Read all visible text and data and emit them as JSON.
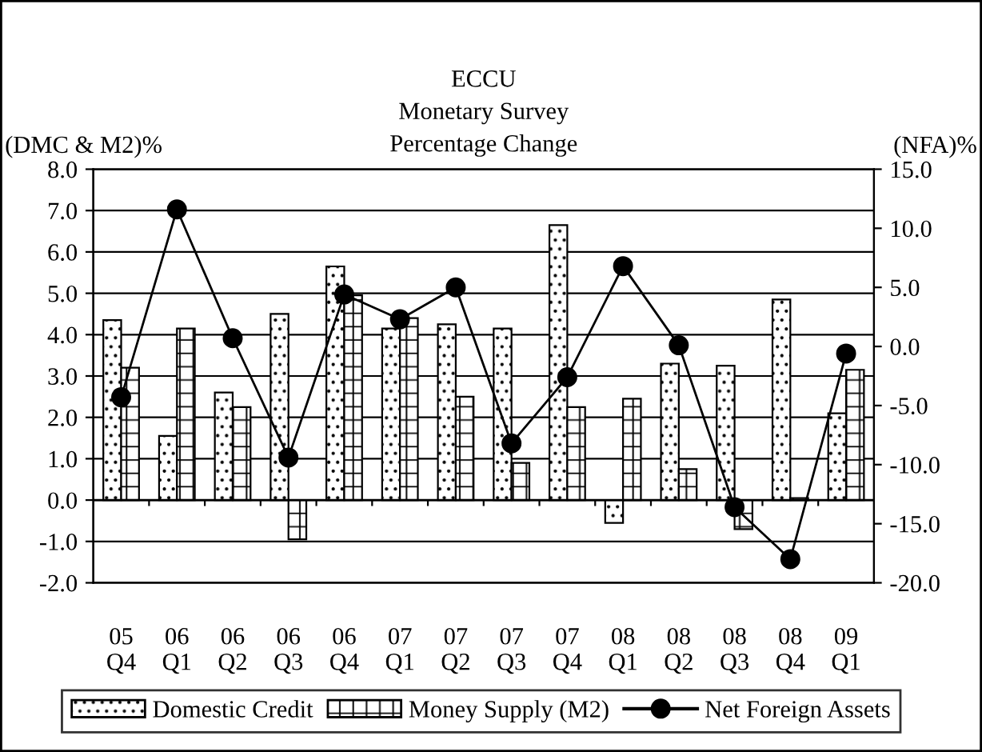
{
  "chart_data": {
    "type": "bar",
    "title": "ECCU\nMonetary Survey\nPercentage Change",
    "ylabel": "(DMC & M2)%",
    "y2label": "(NFA)%",
    "categories": [
      "05\nQ4",
      "06\nQ1",
      "06\nQ2",
      "06\nQ3",
      "06\nQ4",
      "07\nQ1",
      "07\nQ2",
      "07\nQ3",
      "07\nQ4",
      "08\nQ1",
      "08\nQ2",
      "08\nQ3",
      "08\nQ4",
      "09\nQ1"
    ],
    "series": [
      {
        "name": "Domestic Credit",
        "color": "#000000",
        "values": [
          4.35,
          1.55,
          2.6,
          4.5,
          5.65,
          4.15,
          4.25,
          4.15,
          6.65,
          -0.55,
          3.3,
          3.25,
          4.85,
          2.1
        ]
      },
      {
        "name": "Money Supply (M2)",
        "color": "#000000",
        "values": [
          3.2,
          4.15,
          2.25,
          -0.95,
          4.95,
          4.4,
          2.5,
          0.9,
          2.25,
          2.45,
          0.75,
          -0.7,
          0.05,
          3.15
        ]
      },
      {
        "name": "Net Foreign Assets",
        "type": "line",
        "axis": "y2",
        "color": "#000000",
        "marker": "circle",
        "values": [
          -4.3,
          11.6,
          0.7,
          -9.4,
          4.4,
          2.3,
          5.0,
          -8.2,
          -2.6,
          6.8,
          0.1,
          -13.6,
          -18.0,
          -0.6
        ]
      }
    ],
    "ylim": [
      -2,
      8
    ],
    "yticks": [
      {
        "value": -2,
        "label": "-2.0"
      },
      {
        "value": -1,
        "label": "-1.0"
      },
      {
        "value": 0,
        "label": "0.0"
      },
      {
        "value": 1,
        "label": "1.0"
      },
      {
        "value": 2,
        "label": "2.0"
      },
      {
        "value": 3,
        "label": "3.0"
      },
      {
        "value": 4,
        "label": "4.0"
      },
      {
        "value": 5,
        "label": "5.0"
      },
      {
        "value": 6,
        "label": "6.0"
      },
      {
        "value": 7,
        "label": "7.0"
      },
      {
        "value": 8,
        "label": "8.0"
      }
    ],
    "y2lim": [
      -20,
      15
    ],
    "y2ticks": [
      {
        "value": -20,
        "label": "-20.0"
      },
      {
        "value": -15,
        "label": "-15.0"
      },
      {
        "value": -10,
        "label": "-10.0"
      },
      {
        "value": -5,
        "label": "-5.0"
      },
      {
        "value": 0,
        "label": "0.0"
      },
      {
        "value": 5,
        "label": "5.0"
      },
      {
        "value": 10,
        "label": "10.0"
      },
      {
        "value": 15,
        "label": "15.0"
      }
    ],
    "grid": "y",
    "legend": "bottom"
  }
}
